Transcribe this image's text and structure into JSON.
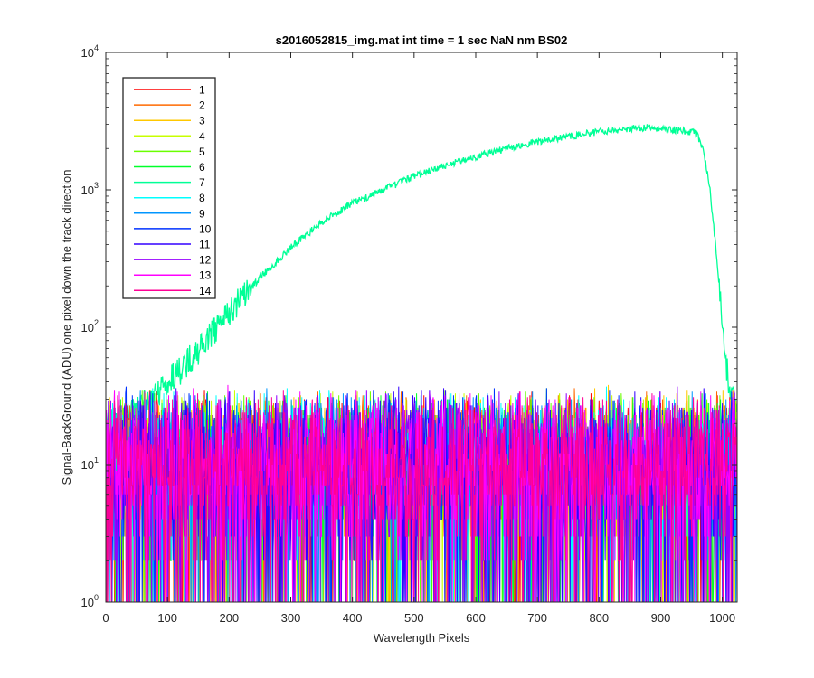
{
  "chart_data": {
    "type": "line",
    "title": "s2016052815_img.mat int time = 1 sec  NaN nm BS02",
    "xlabel": "Wavelength Pixels",
    "ylabel": "Signal-BackGround (ADU) one pixel down the track direction",
    "xlim": [
      0,
      1024
    ],
    "ylim": [
      1,
      10000
    ],
    "yscale": "log",
    "xticks": [
      0,
      100,
      200,
      300,
      400,
      500,
      600,
      700,
      800,
      900,
      1000
    ],
    "xtick_labels": [
      "0",
      "100",
      "200",
      "300",
      "400",
      "500",
      "600",
      "700",
      "800",
      "900",
      "1000"
    ],
    "yticks": [
      1,
      10,
      100,
      1000,
      10000
    ],
    "ytick_bases": [
      "10",
      "10",
      "10",
      "10",
      "10"
    ],
    "ytick_exponents": [
      "0",
      "1",
      "2",
      "3",
      "4"
    ],
    "legend_position": "top-left",
    "series": [
      {
        "name": "1",
        "color": "#ff0000",
        "profile": "noise"
      },
      {
        "name": "2",
        "color": "#ff6a00",
        "profile": "noise"
      },
      {
        "name": "3",
        "color": "#ffc800",
        "profile": "noise"
      },
      {
        "name": "4",
        "color": "#c8ff00",
        "profile": "noise"
      },
      {
        "name": "5",
        "color": "#6aff00",
        "profile": "noise"
      },
      {
        "name": "6",
        "color": "#00ff2a",
        "profile": "noise"
      },
      {
        "name": "7",
        "color": "#00ff96",
        "profile": "signal",
        "x": [
          0,
          50,
          100,
          150,
          200,
          250,
          300,
          350,
          400,
          450,
          500,
          550,
          600,
          650,
          700,
          750,
          800,
          850,
          880,
          900,
          930,
          950,
          960,
          970,
          980,
          990,
          1000,
          1010,
          1024
        ],
        "y": [
          20,
          25,
          40,
          70,
          130,
          230,
          380,
          580,
          800,
          1000,
          1250,
          1500,
          1750,
          2000,
          2250,
          2450,
          2650,
          2800,
          2850,
          2780,
          2720,
          2650,
          2500,
          1900,
          1000,
          350,
          110,
          40,
          25
        ]
      },
      {
        "name": "8",
        "color": "#00ffff",
        "profile": "noise"
      },
      {
        "name": "9",
        "color": "#0096ff",
        "profile": "noise"
      },
      {
        "name": "10",
        "color": "#0032ff",
        "profile": "noise"
      },
      {
        "name": "11",
        "color": "#3200ff",
        "profile": "noise"
      },
      {
        "name": "12",
        "color": "#9600ff",
        "profile": "noise"
      },
      {
        "name": "13",
        "color": "#ff00ff",
        "profile": "noise"
      },
      {
        "name": "14",
        "color": "#ff0096",
        "profile": "noise"
      }
    ]
  }
}
